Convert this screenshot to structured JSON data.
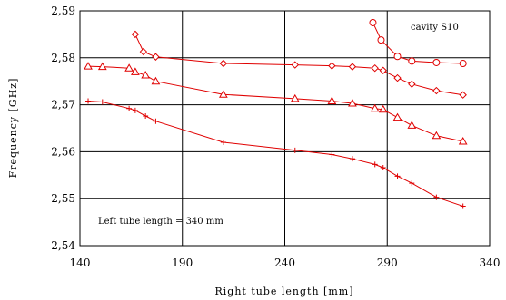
{
  "chart_data": {
    "type": "line",
    "xlabel": "Right tube length [mm]",
    "ylabel": "Frequency [GHz]",
    "xlim": [
      140,
      340
    ],
    "ylim": [
      2.54,
      2.59
    ],
    "x_ticks": [
      "140",
      "190",
      "240",
      "290",
      "340"
    ],
    "y_ticks": [
      "2,54",
      "2,55",
      "2,56",
      "2,57",
      "2,58",
      "2,59"
    ],
    "grid": true,
    "annotations": {
      "cavity": "cavity S10",
      "left_tube": "Left tube length = 340 mm"
    },
    "series_color": "#e00000",
    "series": [
      {
        "marker": "circle",
        "x": [
          283,
          287,
          295,
          302,
          314,
          327
        ],
        "y": [
          2.5875,
          2.5838,
          2.5803,
          2.5793,
          2.579,
          2.5788
        ]
      },
      {
        "marker": "diamond",
        "x": [
          167,
          171,
          177,
          210,
          245,
          263,
          273,
          284,
          288,
          295,
          302,
          314,
          327
        ],
        "y": [
          2.585,
          2.5813,
          2.5802,
          2.5788,
          2.5785,
          2.5783,
          2.5781,
          2.5778,
          2.5773,
          2.5757,
          2.5744,
          2.573,
          2.5721
        ]
      },
      {
        "marker": "triangle",
        "x": [
          144,
          151,
          164,
          167,
          172,
          177,
          210,
          245,
          263,
          273,
          284,
          288,
          295,
          302,
          314,
          327
        ],
        "y": [
          2.5782,
          2.5781,
          2.5778,
          2.577,
          2.5763,
          2.575,
          2.5722,
          2.5713,
          2.5708,
          2.5703,
          2.5692,
          2.569,
          2.5673,
          2.5656,
          2.5634,
          2.5622
        ]
      },
      {
        "marker": "plus",
        "x": [
          144,
          151,
          164,
          167,
          172,
          177,
          210,
          245,
          263,
          273,
          284,
          288,
          295,
          302,
          314,
          327
        ],
        "y": [
          2.5708,
          2.5706,
          2.5692,
          2.5688,
          2.5676,
          2.5665,
          2.562,
          2.5603,
          2.5594,
          2.5585,
          2.5573,
          2.5566,
          2.5548,
          2.5533,
          2.5503,
          2.5484
        ]
      }
    ]
  }
}
